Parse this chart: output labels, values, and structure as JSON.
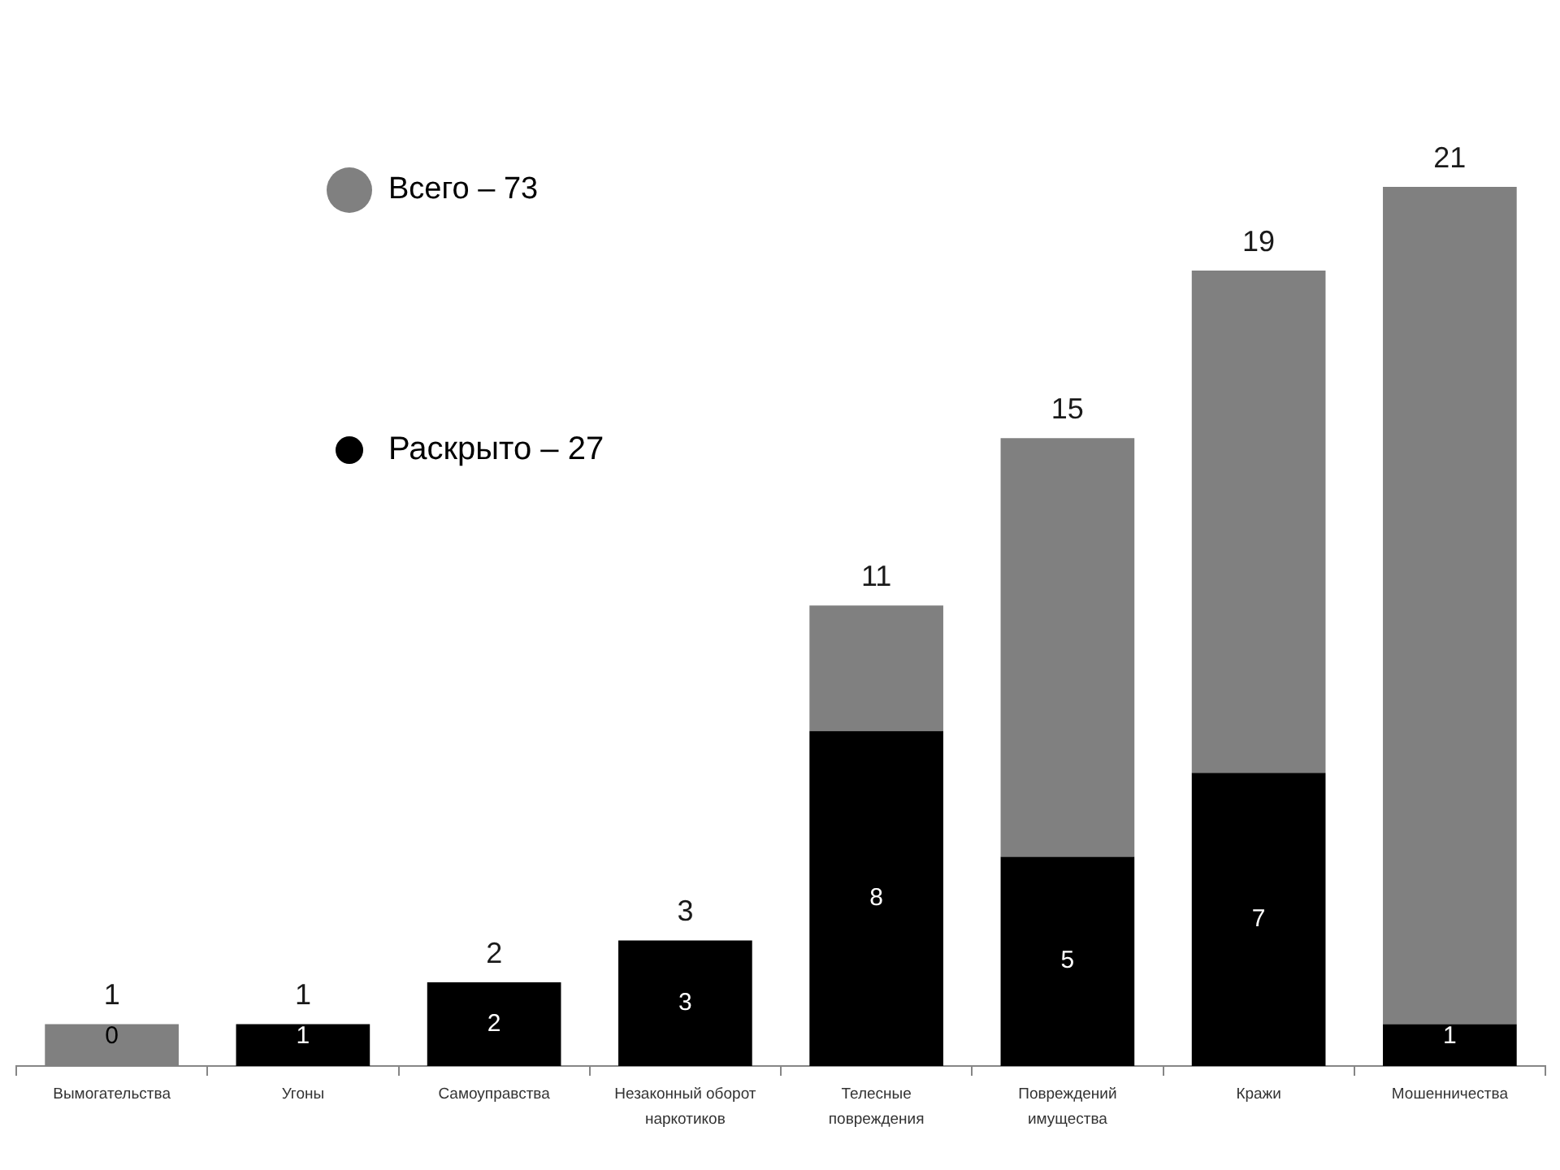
{
  "chart_data": {
    "type": "bar",
    "categories": [
      "Вымогательства",
      "Угоны",
      "Самоуправства",
      "Незаконный оборот наркотиков",
      "Телесные повреждения",
      "Повреждений имущества",
      "Кражи",
      "Мошенничества"
    ],
    "series": [
      {
        "name": "Раскрыто – 27",
        "color": "#000000",
        "values": [
          0,
          1,
          2,
          3,
          8,
          5,
          7,
          1
        ],
        "value_labels": [
          "0",
          "1",
          "2",
          "3",
          "8",
          "5",
          "7",
          "1"
        ]
      },
      {
        "name": "Всего – 73",
        "color": "#808080",
        "values": [
          1,
          0,
          0,
          0,
          3,
          10,
          12,
          20
        ]
      }
    ],
    "stacked": true,
    "totals": [
      "1",
      "1",
      "2",
      "3",
      "11",
      "15",
      "19",
      "21"
    ],
    "tick_labels": "x",
    "legend": "top left"
  }
}
